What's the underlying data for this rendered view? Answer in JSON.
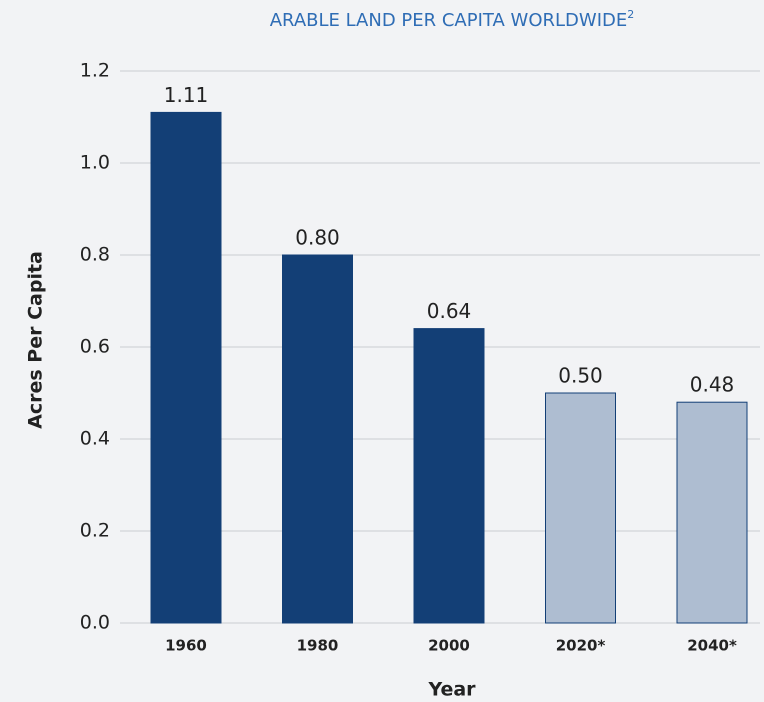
{
  "chart_data": {
    "type": "bar",
    "title": "ARABLE LAND PER CAPITA WORLDWIDE",
    "title_superscript": "2",
    "x_label": "Year",
    "y_label": "Acres Per Capita",
    "categories": [
      "1960",
      "1980",
      "2000",
      "2020*",
      "2040*"
    ],
    "values": [
      1.11,
      0.8,
      0.64,
      0.5,
      0.48
    ],
    "value_labels": [
      "1.11",
      "0.80",
      "0.64",
      "0.50",
      "0.48"
    ],
    "colors": [
      "#133f76",
      "#133f76",
      "#133f76",
      "#aebdd1",
      "#aebdd1"
    ],
    "edgecolor": "#133f76",
    "ylim": [
      0,
      1.2
    ],
    "yticks": [
      {
        "value": 0,
        "label": "0.0"
      },
      0.2,
      0.4,
      0.6,
      0.8,
      {
        "value": 1,
        "label": "1.0"
      },
      1.2
    ],
    "grid": true
  }
}
